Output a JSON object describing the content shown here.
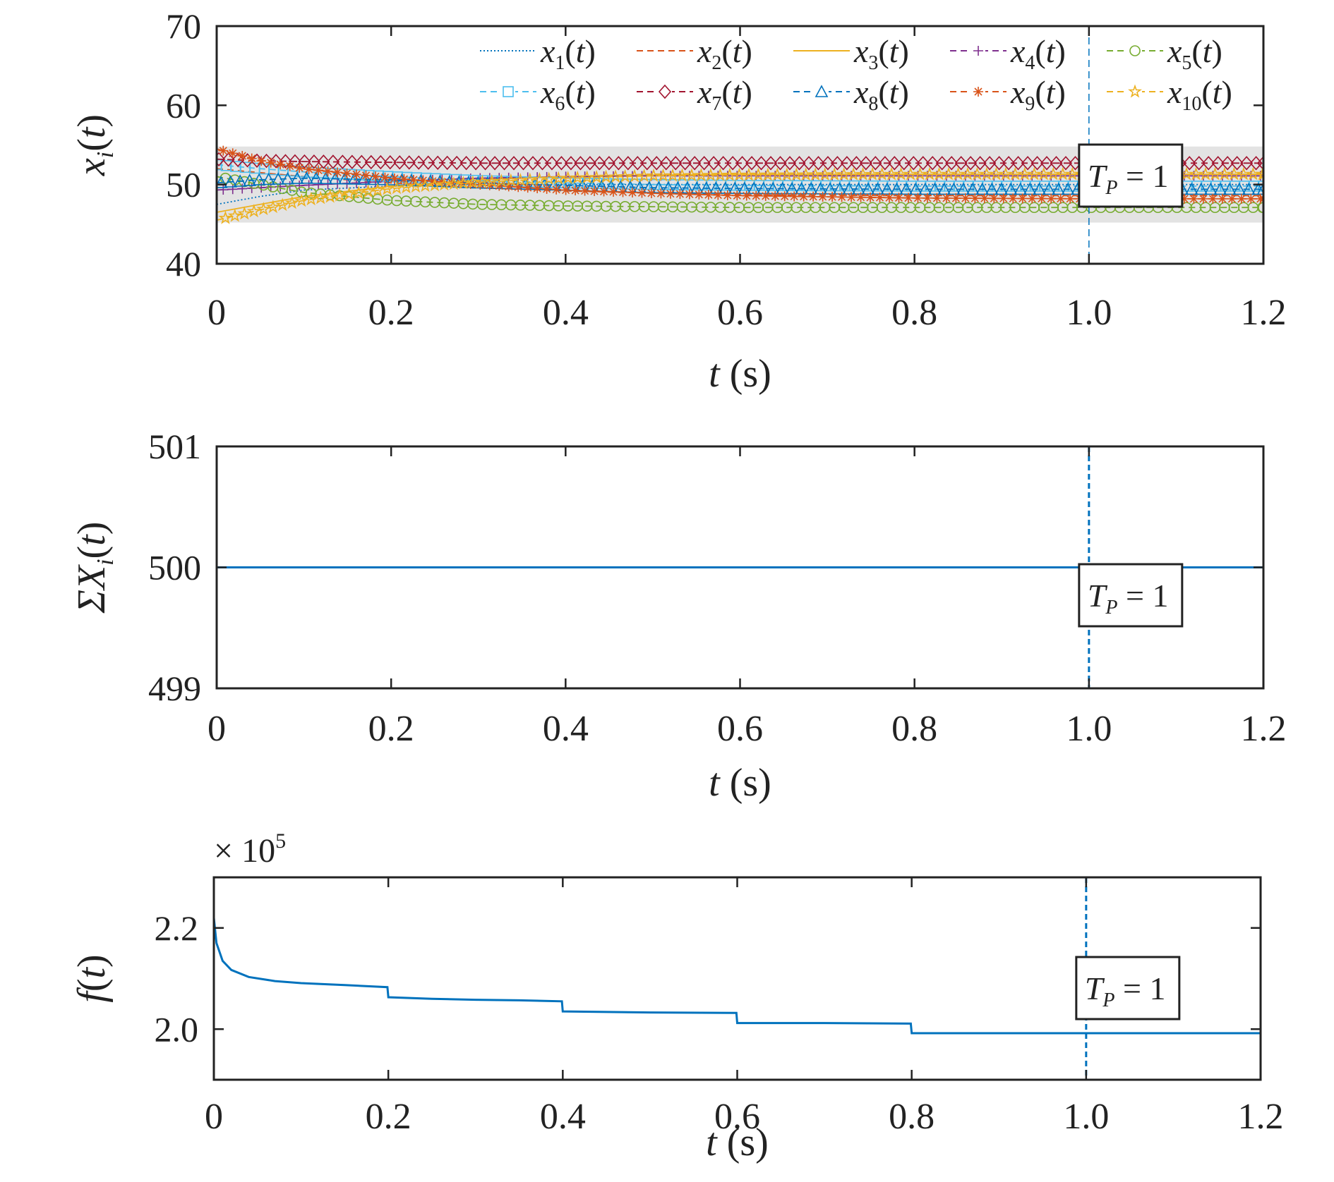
{
  "chart_data": [
    {
      "type": "line",
      "xlabel_var": "t",
      "xlabel_unit": " (s)",
      "ylabel_var": "x",
      "ylabel_sub": "i",
      "ylabel_arg": "(t)",
      "xlim": [
        0,
        1.2
      ],
      "ylim": [
        40,
        70
      ],
      "xticks": [
        0,
        0.2,
        0.4,
        0.6,
        0.8,
        1.0,
        1.2
      ],
      "xtick_labels": [
        "0",
        "0.2",
        "0.4",
        "0.6",
        "0.8",
        "1.0",
        "1.2"
      ],
      "yticks": [
        40,
        50,
        60,
        70
      ],
      "ytick_labels": [
        "40",
        "50",
        "60",
        "70"
      ],
      "shaded_band": [
        45.2,
        54.8
      ],
      "vline_x": 1.0,
      "annotation": {
        "var": "T",
        "sub": "P",
        "rest": " = 1"
      },
      "legend_position": "top-right",
      "series": [
        {
          "name": "x1(t)",
          "label_var": "x",
          "label_sub": "1",
          "label_arg": "(t)",
          "color": "#0072BD",
          "dash": "2,3",
          "marker": "none",
          "x": [
            0,
            0.05,
            0.1,
            0.2,
            0.3,
            0.4,
            0.5,
            0.6,
            0.8,
            1.0,
            1.2
          ],
          "y": [
            47.5,
            48.5,
            49.3,
            49.8,
            50.0,
            50.0,
            50.0,
            50.0,
            50.0,
            50.0,
            50.0
          ]
        },
        {
          "name": "x2(t)",
          "label_var": "x",
          "label_sub": "2",
          "label_arg": "(t)",
          "color": "#D95319",
          "dash": "9,6",
          "marker": "none",
          "x": [
            0,
            0.05,
            0.1,
            0.2,
            0.3,
            0.4,
            0.5,
            0.6,
            0.8,
            1.0,
            1.2
          ],
          "y": [
            52.0,
            51.5,
            51.0,
            50.2,
            49.6,
            49.2,
            48.9,
            48.7,
            48.6,
            48.6,
            48.6
          ]
        },
        {
          "name": "x3(t)",
          "label_var": "x",
          "label_sub": "3",
          "label_arg": "(t)",
          "color": "#EDB120",
          "dash": "",
          "marker": "none",
          "x": [
            0,
            0.05,
            0.1,
            0.2,
            0.3,
            0.4,
            0.5,
            0.6,
            0.8,
            1.0,
            1.2
          ],
          "y": [
            46.5,
            47.5,
            48.5,
            49.8,
            50.6,
            51.0,
            51.2,
            51.3,
            51.3,
            51.3,
            51.3
          ]
        },
        {
          "name": "x4(t)",
          "label_var": "x",
          "label_sub": "4",
          "label_arg": "(t)",
          "color": "#7E2F8E",
          "dash": "9,6",
          "marker": "plus",
          "x": [
            0,
            0.05,
            0.1,
            0.2,
            0.3,
            0.4,
            0.5,
            0.6,
            0.8,
            1.0,
            1.2
          ],
          "y": [
            49.3,
            49.6,
            49.9,
            50.4,
            50.8,
            51.0,
            51.1,
            51.1,
            51.1,
            51.1,
            51.1
          ]
        },
        {
          "name": "x5(t)",
          "label_var": "x",
          "label_sub": "5",
          "label_arg": "(t)",
          "color": "#77AC30",
          "dash": "9,6",
          "marker": "circle",
          "x": [
            0,
            0.05,
            0.1,
            0.2,
            0.3,
            0.4,
            0.5,
            0.6,
            0.8,
            1.0,
            1.2
          ],
          "y": [
            51.0,
            50.0,
            49.0,
            48.0,
            47.5,
            47.3,
            47.2,
            47.1,
            47.1,
            47.1,
            47.1
          ]
        },
        {
          "name": "x6(t)",
          "label_var": "x",
          "label_sub": "6",
          "label_arg": "(t)",
          "color": "#4DBEEE",
          "dash": "9,6",
          "marker": "square",
          "x": [
            0,
            0.05,
            0.1,
            0.2,
            0.3,
            0.4,
            0.5,
            0.6,
            0.8,
            1.0,
            1.2
          ],
          "y": [
            52.5,
            52.0,
            51.6,
            51.0,
            50.5,
            50.2,
            50.0,
            49.9,
            49.8,
            49.8,
            49.8
          ]
        },
        {
          "name": "x7(t)",
          "label_var": "x",
          "label_sub": "7",
          "label_arg": "(t)",
          "color": "#A2142F",
          "dash": "9,6",
          "marker": "diamond",
          "x": [
            0,
            0.05,
            0.1,
            0.2,
            0.3,
            0.4,
            0.5,
            0.6,
            0.8,
            1.0,
            1.2
          ],
          "y": [
            53.2,
            53.0,
            52.9,
            52.8,
            52.7,
            52.7,
            52.7,
            52.7,
            52.7,
            52.7,
            52.7
          ]
        },
        {
          "name": "x8(t)",
          "label_var": "x",
          "label_sub": "8",
          "label_arg": "(t)",
          "color": "#0072BD",
          "dash": "9,6",
          "marker": "triangle",
          "x": [
            0,
            0.05,
            0.1,
            0.2,
            0.3,
            0.4,
            0.5,
            0.6,
            0.8,
            1.0,
            1.2
          ],
          "y": [
            50.2,
            50.6,
            50.8,
            50.6,
            50.2,
            49.9,
            49.6,
            49.5,
            49.4,
            49.4,
            49.4
          ]
        },
        {
          "name": "x9(t)",
          "label_var": "x",
          "label_sub": "9",
          "label_arg": "(t)",
          "color": "#D95319",
          "dash": "9,6",
          "marker": "asterisk",
          "x": [
            0,
            0.05,
            0.1,
            0.2,
            0.3,
            0.4,
            0.5,
            0.6,
            0.8,
            1.0,
            1.2
          ],
          "y": [
            54.5,
            53.0,
            52.0,
            50.8,
            50.0,
            49.3,
            48.9,
            48.6,
            48.3,
            48.2,
            48.2
          ]
        },
        {
          "name": "x10(t)",
          "label_var": "x",
          "label_sub": "10",
          "label_arg": "(t)",
          "color": "#EDB120",
          "dash": "9,6",
          "marker": "star",
          "x": [
            0,
            0.05,
            0.1,
            0.2,
            0.3,
            0.4,
            0.5,
            0.6,
            0.8,
            1.0,
            1.2
          ],
          "y": [
            45.5,
            46.8,
            48.0,
            49.5,
            50.3,
            50.8,
            51.1,
            51.2,
            51.3,
            51.3,
            51.3
          ]
        }
      ]
    },
    {
      "type": "line",
      "xlabel_var": "t",
      "xlabel_unit": " (s)",
      "ylabel_pre": "ΣX",
      "ylabel_sub": "i",
      "ylabel_arg": "(t)",
      "xlim": [
        0,
        1.2
      ],
      "ylim": [
        499,
        501
      ],
      "xticks": [
        0,
        0.2,
        0.4,
        0.6,
        0.8,
        1.0,
        1.2
      ],
      "xtick_labels": [
        "0",
        "0.2",
        "0.4",
        "0.6",
        "0.8",
        "1.0",
        "1.2"
      ],
      "yticks": [
        499,
        500,
        501
      ],
      "ytick_labels": [
        "499",
        "500",
        "501"
      ],
      "vline_x": 1.0,
      "annotation": {
        "var": "T",
        "sub": "P",
        "rest": " = 1"
      },
      "series": [
        {
          "color": "#0072BD",
          "x": [
            0,
            1.2
          ],
          "y": [
            500,
            500
          ]
        }
      ]
    },
    {
      "type": "line",
      "xlabel_var": "t",
      "xlabel_unit": " (s)",
      "ylabel_var": "f",
      "ylabel_arg": "(t)",
      "multiplier": {
        "base": "× 10",
        "exp": "5"
      },
      "xlim": [
        0,
        1.2
      ],
      "ylim": [
        1.9,
        2.3
      ],
      "xticks": [
        0,
        0.2,
        0.4,
        0.6,
        0.8,
        1.0,
        1.2
      ],
      "xtick_labels": [
        "0",
        "0.2",
        "0.4",
        "0.6",
        "0.8",
        "1.0",
        "1.2"
      ],
      "yticks": [
        2.0,
        2.2
      ],
      "ytick_labels": [
        "2.0",
        "2.2"
      ],
      "vline_x": 1.0,
      "annotation": {
        "var": "T",
        "sub": "P",
        "rest": " = 1"
      },
      "series": [
        {
          "color": "#0072BD",
          "x": [
            0,
            0.003,
            0.01,
            0.02,
            0.04,
            0.07,
            0.1,
            0.15,
            0.199,
            0.2,
            0.25,
            0.3,
            0.35,
            0.399,
            0.4,
            0.45,
            0.5,
            0.599,
            0.6,
            0.7,
            0.799,
            0.8,
            1.0,
            1.2
          ],
          "y": [
            2.22,
            2.17,
            2.135,
            2.117,
            2.103,
            2.095,
            2.091,
            2.087,
            2.083,
            2.063,
            2.06,
            2.058,
            2.057,
            2.055,
            2.035,
            2.034,
            2.033,
            2.032,
            2.012,
            2.012,
            2.011,
            1.992,
            1.992,
            1.992
          ]
        }
      ]
    }
  ]
}
